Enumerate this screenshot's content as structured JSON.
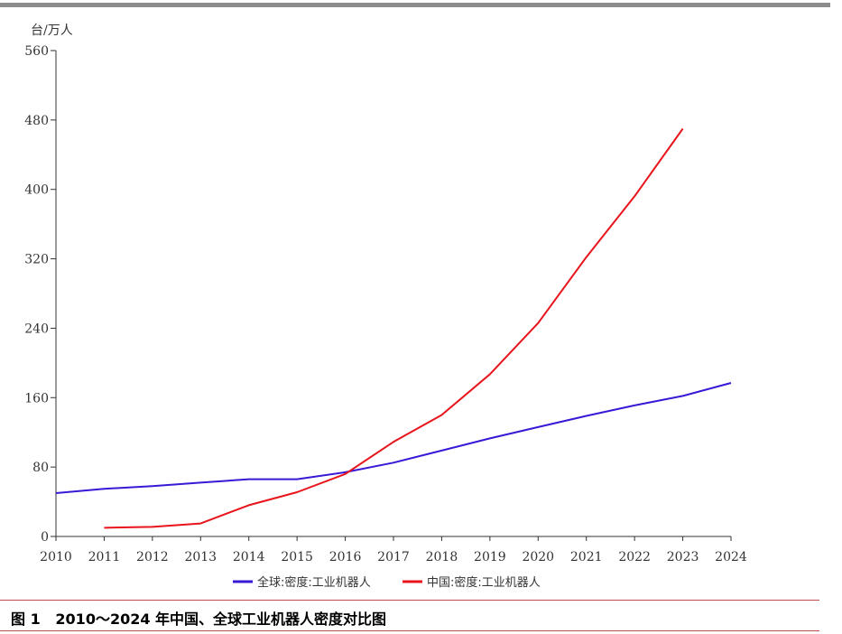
{
  "figure": {
    "caption": "图 1   2010～2024 年中国、全球工业机器人密度对比图"
  },
  "chart_data": {
    "type": "line",
    "title": "",
    "ylabel": "台/万人",
    "xlabel": "",
    "x": [
      2010,
      2011,
      2012,
      2013,
      2014,
      2015,
      2016,
      2017,
      2018,
      2019,
      2020,
      2021,
      2022,
      2023,
      2024
    ],
    "ylim": [
      0,
      560
    ],
    "yticks": [
      0,
      80,
      160,
      240,
      320,
      400,
      480,
      560
    ],
    "xticks": [
      "2010",
      "2011",
      "2012",
      "2013",
      "2014",
      "2015",
      "2016",
      "2017",
      "2018",
      "2019",
      "2020",
      "2021",
      "2022",
      "2023",
      "2024"
    ],
    "grid": false,
    "legend_position": "bottom",
    "series": [
      {
        "name": "全球:密度:工业机器人",
        "color": "#3a18d6",
        "values": [
          50,
          55,
          58,
          62,
          66,
          66,
          74,
          85,
          99,
          113,
          126,
          139,
          151,
          162,
          177
        ]
      },
      {
        "name": "中国:密度:工业机器人",
        "color": "#e8141b",
        "values": [
          null,
          10,
          11,
          15,
          36,
          51,
          72,
          109,
          140,
          187,
          246,
          322,
          392,
          470,
          null
        ]
      }
    ]
  }
}
